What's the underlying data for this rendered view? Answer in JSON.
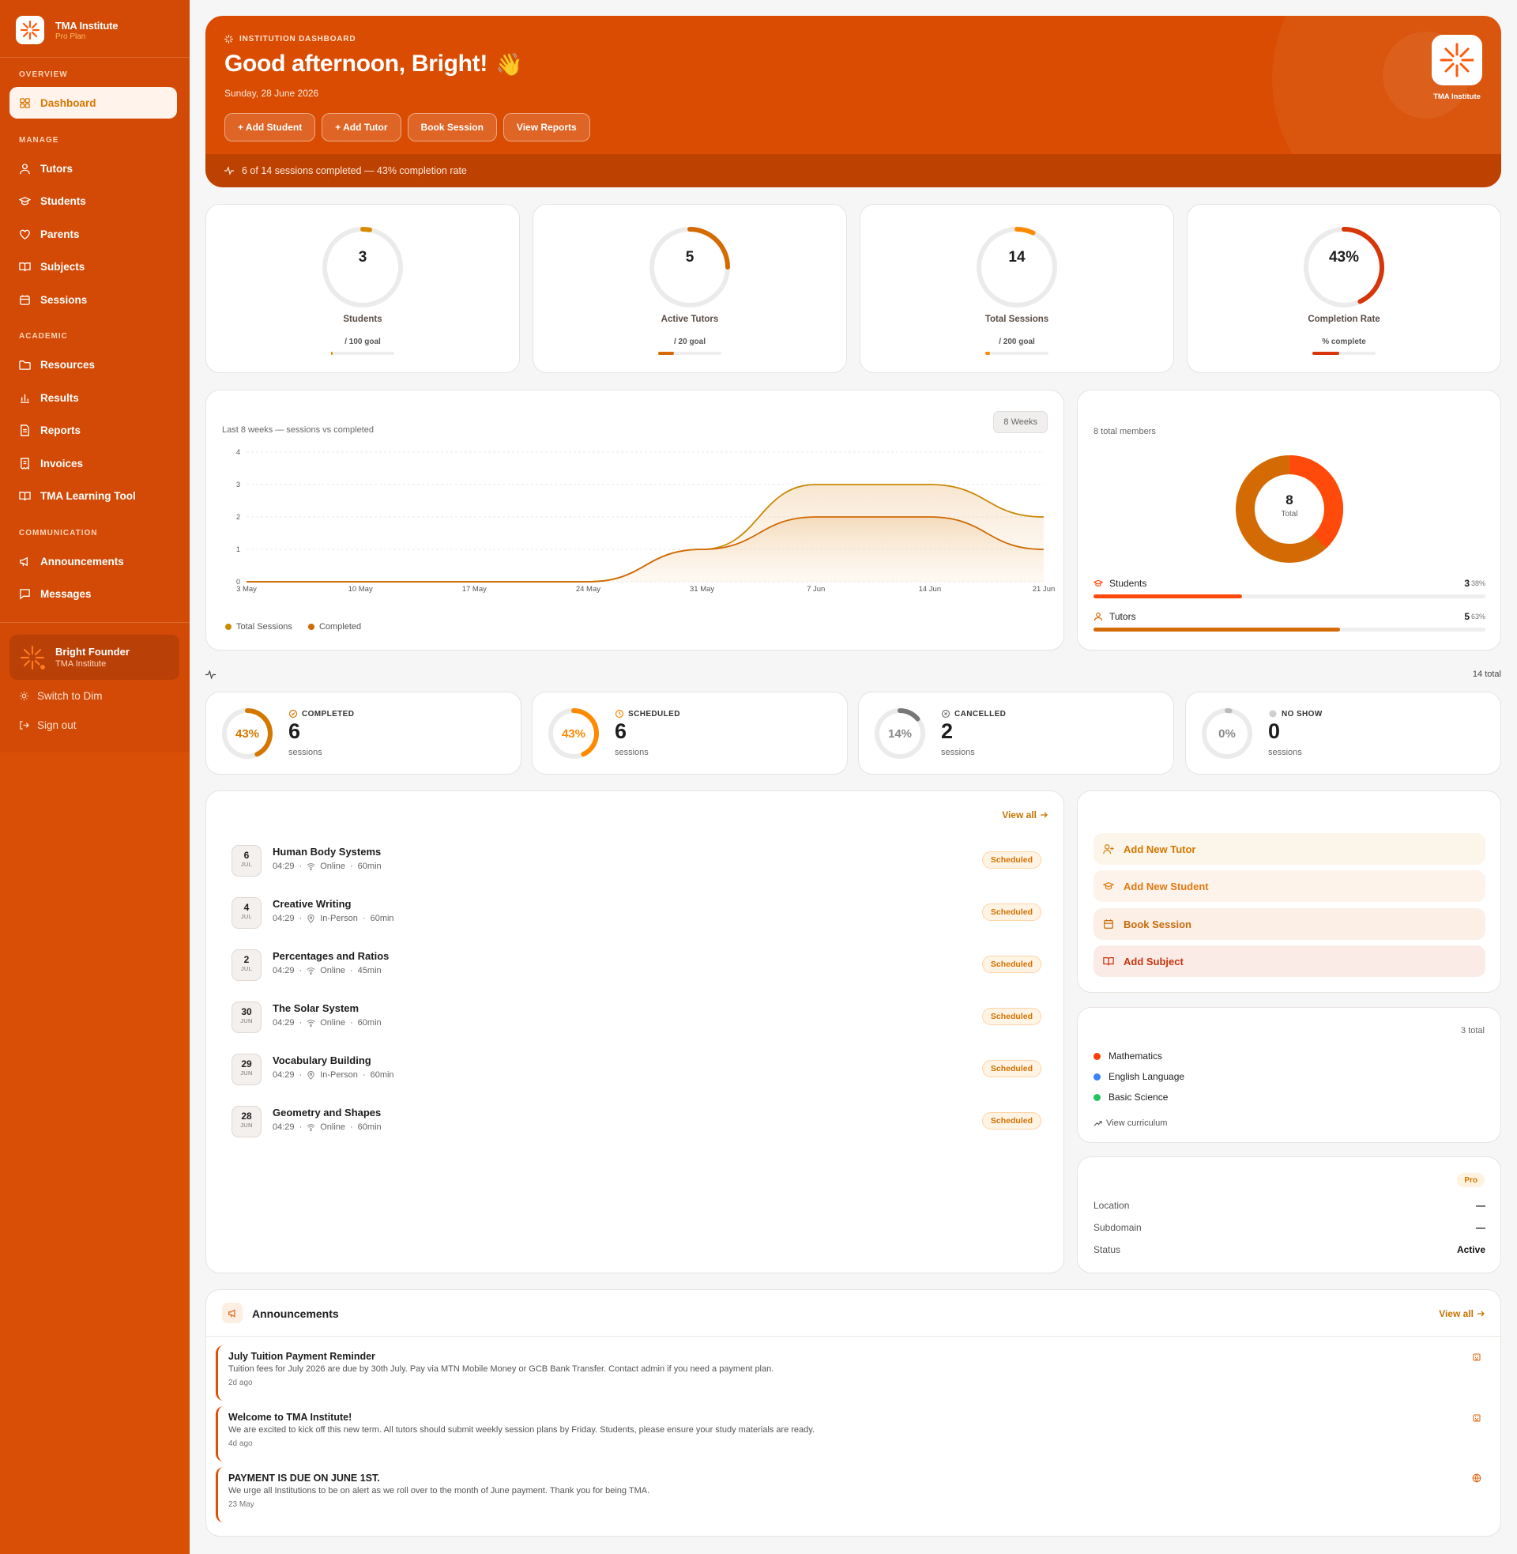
{
  "sidebar": {
    "brand_title": "TMA Institute",
    "brand_sub": "Pro Plan",
    "sections": {
      "overview": "OVERVIEW",
      "manage": "MANAGE",
      "academic": "ACADEMIC",
      "communication": "COMMUNICATION"
    },
    "items": {
      "dashboard": "Dashboard",
      "tutors": "Tutors",
      "students": "Students",
      "parents": "Parents",
      "subjects": "Subjects",
      "sessions": "Sessions",
      "resources": "Resources",
      "results": "Results",
      "reports": "Reports",
      "invoices": "Invoices",
      "learning_tool": "TMA Learning Tool",
      "announcements": "Announcements",
      "messages": "Messages"
    },
    "profile_name": "Bright Founder",
    "profile_org": "TMA Institute",
    "switch_theme": "Switch to Dim",
    "sign_out": "Sign out"
  },
  "hero": {
    "tag": "INSTITUTION DASHBOARD",
    "greeting": "Good afternoon, Bright!",
    "wave": "👋",
    "date": "Sunday, 28 June 2026",
    "buttons": [
      "+ Add Student",
      "+ Add Tutor",
      "Book Session",
      "View Reports"
    ],
    "logo_label": "TMA Institute",
    "footer": "6 of 14 sessions completed — 43% completion rate"
  },
  "stats": [
    {
      "value": "3",
      "label": "Students",
      "goal": "/ 100 goal",
      "progress": 0.03,
      "color": "#d98a00"
    },
    {
      "value": "5",
      "label": "Active Tutors",
      "goal": "/ 20 goal",
      "progress": 0.25,
      "color": "#d46a00"
    },
    {
      "value": "14",
      "label": "Total Sessions",
      "goal": "/ 200 goal",
      "progress": 0.07,
      "color": "#ff8a00"
    },
    {
      "value": "43%",
      "label": "Completion Rate",
      "goal": "% complete",
      "progress": 0.43,
      "color": "#d7360a"
    }
  ],
  "chart": {
    "subtitle": "Last 8 weeks — sessions vs completed",
    "range_chip": "8 Weeks",
    "legend_total": "Total Sessions",
    "legend_completed": "Completed"
  },
  "chart_data": {
    "type": "area",
    "categories": [
      "3 May",
      "10 May",
      "17 May",
      "24 May",
      "31 May",
      "7 Jun",
      "14 Jun",
      "21 Jun"
    ],
    "series": [
      {
        "name": "Total Sessions",
        "values": [
          0,
          0,
          0,
          0,
          1,
          3,
          3,
          2
        ],
        "color": "#c98a06"
      },
      {
        "name": "Completed",
        "values": [
          0,
          0,
          0,
          0,
          1,
          2,
          2,
          1
        ],
        "color": "#d06a04"
      }
    ],
    "ylim": [
      0,
      4
    ],
    "yticks": [
      "0",
      "1",
      "2",
      "3",
      "4"
    ],
    "legend": "bottom-left",
    "grid": true
  },
  "members": {
    "caption": "8 total members",
    "total": "8",
    "total_label": "Total",
    "students_label": "Students",
    "students_count": "3",
    "students_pct": "38%",
    "students_frac": 0.38,
    "tutors_label": "Tutors",
    "tutors_count": "5",
    "tutors_pct": "63%",
    "tutors_frac": 0.63,
    "students_color": "#ff4a0b",
    "tutors_color": "#d46a04"
  },
  "status_summary": {
    "total": "14 total"
  },
  "statuses": [
    {
      "pct": "43%",
      "frac": 0.43,
      "label": "COMPLETED",
      "count": "6",
      "sub": "sessions",
      "color": "#d47700"
    },
    {
      "pct": "43%",
      "frac": 0.43,
      "label": "SCHEDULED",
      "count": "6",
      "sub": "sessions",
      "color": "#ff8a00"
    },
    {
      "pct": "14%",
      "frac": 0.14,
      "label": "CANCELLED",
      "count": "2",
      "sub": "sessions",
      "color": "#777777"
    },
    {
      "pct": "0%",
      "frac": 0.0,
      "label": "NO SHOW",
      "count": "0",
      "sub": "sessions",
      "color": "#bbbbbb"
    }
  ],
  "sessions": {
    "view_all": "View all",
    "items": [
      {
        "day": "6",
        "month": "JUL",
        "title": "Human Body Systems",
        "time": "04:29",
        "mode": "Online",
        "duration": "60min",
        "status": "Scheduled",
        "mode_icon": "wifi-icon"
      },
      {
        "day": "4",
        "month": "JUL",
        "title": "Creative Writing",
        "time": "04:29",
        "mode": "In-Person",
        "duration": "60min",
        "status": "Scheduled",
        "mode_icon": "location-pin-icon"
      },
      {
        "day": "2",
        "month": "JUL",
        "title": "Percentages and Ratios",
        "time": "04:29",
        "mode": "Online",
        "duration": "45min",
        "status": "Scheduled",
        "mode_icon": "wifi-icon"
      },
      {
        "day": "30",
        "month": "JUN",
        "title": "The Solar System",
        "time": "04:29",
        "mode": "Online",
        "duration": "60min",
        "status": "Scheduled",
        "mode_icon": "wifi-icon"
      },
      {
        "day": "29",
        "month": "JUN",
        "title": "Vocabulary Building",
        "time": "04:29",
        "mode": "In-Person",
        "duration": "60min",
        "status": "Scheduled",
        "mode_icon": "location-pin-icon"
      },
      {
        "day": "28",
        "month": "JUN",
        "title": "Geometry and Shapes",
        "time": "04:29",
        "mode": "Online",
        "duration": "60min",
        "status": "Scheduled",
        "mode_icon": "wifi-icon"
      }
    ]
  },
  "quick_actions": [
    "Add New Tutor",
    "Add New Student",
    "Book Session",
    "Add Subject"
  ],
  "subjects": {
    "total": "3 total",
    "items": [
      {
        "name": "Mathematics",
        "color": "#ff3d0b"
      },
      {
        "name": "English Language",
        "color": "#3b82f6"
      },
      {
        "name": "Basic Science",
        "color": "#22c55e"
      }
    ],
    "view_curriculum": "View curriculum"
  },
  "institution": {
    "plan_badge": "Pro",
    "location_label": "Location",
    "location_value": "—",
    "subdomain_label": "Subdomain",
    "subdomain_value": "—",
    "status_label": "Status",
    "status_value": "Active"
  },
  "announcements": {
    "title": "Announcements",
    "view_all": "View all",
    "items": [
      {
        "title": "July Tuition Payment Reminder",
        "body": "Tuition fees for July 2026 are due by 30th July. Pay via MTN Mobile Money or GCB Bank Transfer. Contact admin if you need a payment plan.",
        "time": "2d ago"
      },
      {
        "title": "Welcome to TMA Institute!",
        "body": "We are excited to kick off this new term. All tutors should submit weekly session plans by Friday. Students, please ensure your study materials are ready.",
        "time": "4d ago"
      },
      {
        "title": "PAYMENT IS DUE ON JUNE 1ST.",
        "body": "We urge all Institutions to be on alert as we roll over to the month of June payment. Thank you for being TMA.",
        "time": "23 May"
      }
    ]
  }
}
